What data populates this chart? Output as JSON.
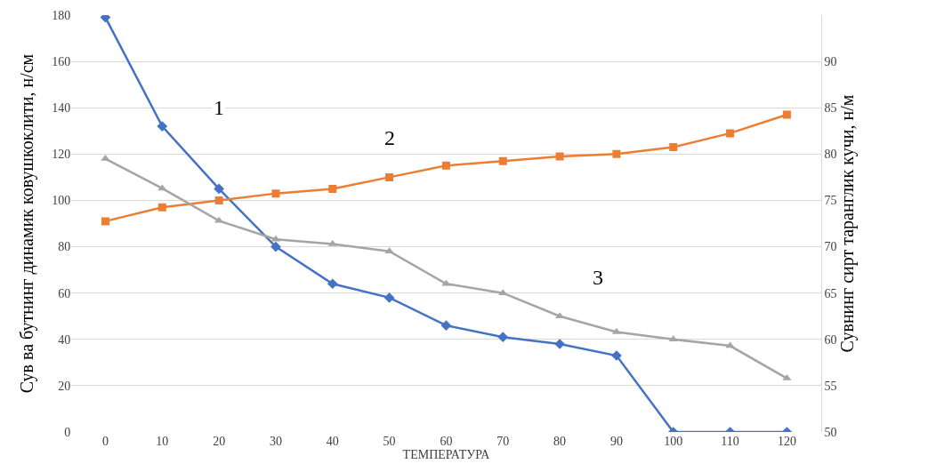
{
  "chart_data": {
    "type": "line",
    "categories": [
      "0",
      "10",
      "20",
      "30",
      "40",
      "50",
      "60",
      "70",
      "80",
      "90",
      "100",
      "110",
      "120"
    ],
    "series": [
      {
        "color": "#4472c4",
        "marker": "diamond",
        "values": [
          179,
          132,
          105,
          80,
          64,
          58,
          46,
          41,
          38,
          33,
          0,
          0,
          0
        ]
      },
      {
        "color": "#ed7d31",
        "marker": "square",
        "values": [
          91,
          97,
          100,
          103,
          105,
          110,
          115,
          117,
          119,
          120,
          123,
          129,
          137
        ]
      },
      {
        "color": "#a5a5a5",
        "marker": "triangle",
        "axis": "y2",
        "values": [
          79.5,
          76.3,
          72.8,
          70.8,
          70.3,
          69.5,
          66,
          65,
          62.5,
          60.8,
          60,
          59.3,
          55.8
        ]
      }
    ],
    "xlabel": "ТЕМПЕРАТУРА",
    "ylabel": "Сув ва бутнинг динамик ковушкоклити, н/см",
    "y2label": "Сувнинг сирт таранглик кучи, н/м",
    "ylim": [
      0,
      180
    ],
    "yticks": [
      0,
      20,
      40,
      60,
      80,
      100,
      120,
      140,
      160,
      180
    ],
    "y2lim": [
      50,
      95
    ],
    "y2ticks": [
      50,
      55,
      60,
      65,
      70,
      75,
      80,
      85,
      90
    ],
    "grid": "y",
    "annotations": [
      {
        "text": "1",
        "x": "20",
        "y": 140
      },
      {
        "text": "2",
        "x": "50",
        "y": 127
      },
      "3"
    ]
  }
}
